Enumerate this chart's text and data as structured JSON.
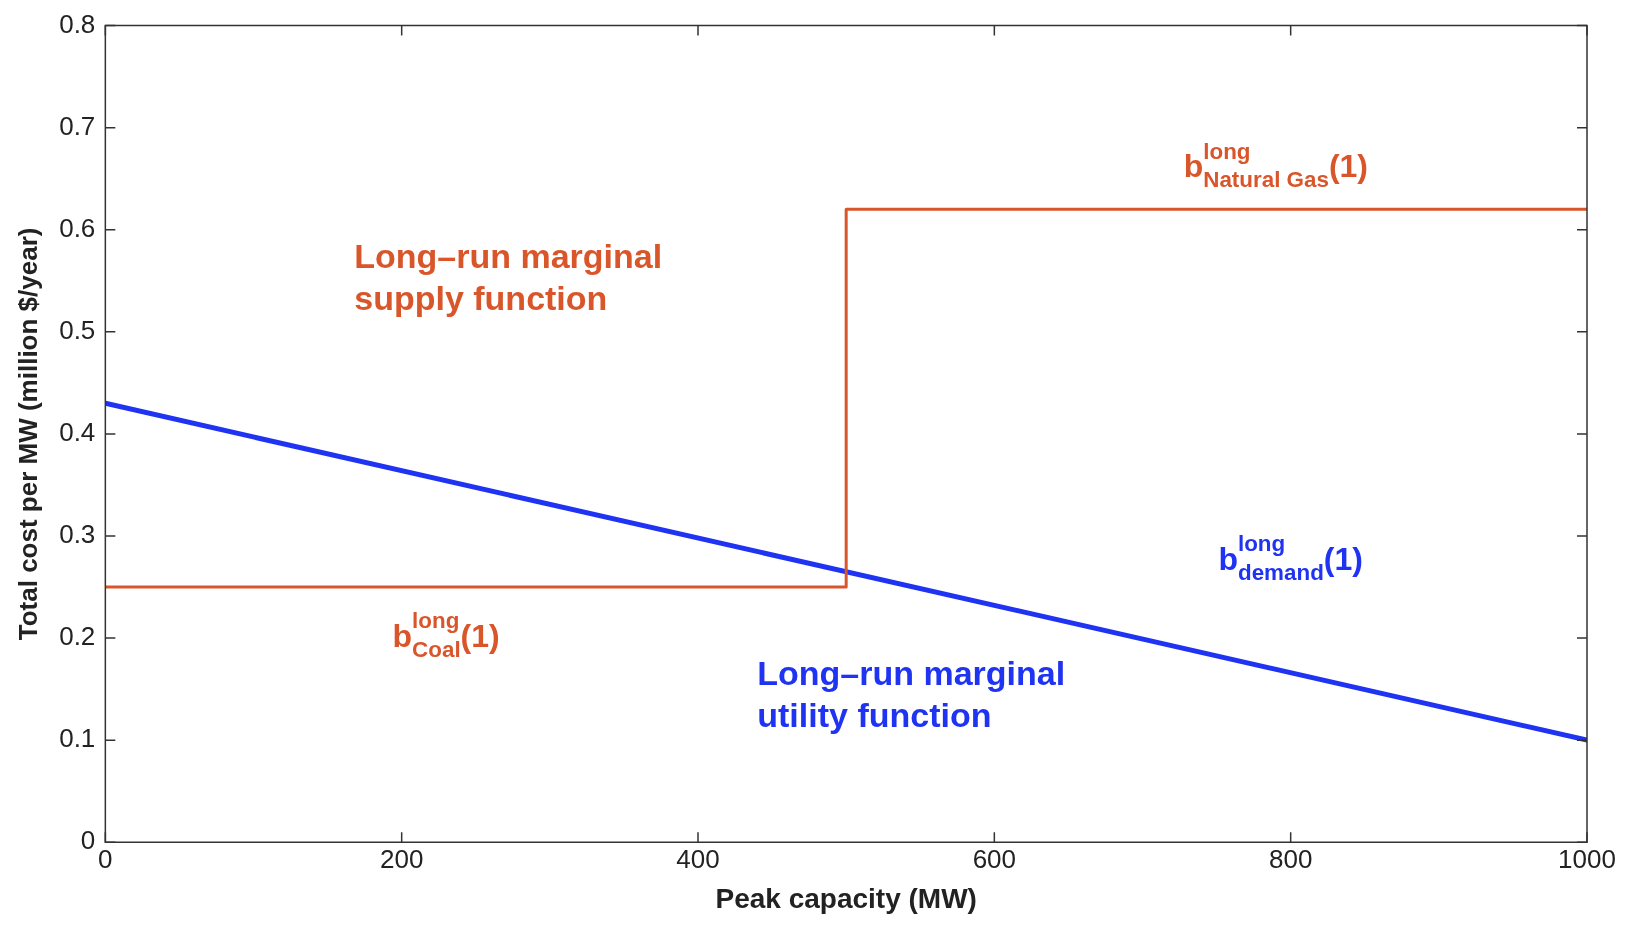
{
  "chart_data": {
    "type": "line",
    "xlabel": "Peak capacity (MW)",
    "ylabel": "Total cost per MW (million $/year)",
    "series": [
      {
        "name": "Long–run marginal supply function",
        "type": "step",
        "color": "#d9562b",
        "x": [
          0,
          500,
          1000
        ],
        "values": [
          0.25,
          0.62,
          0.62
        ]
      },
      {
        "name": "Long–run marginal utility function",
        "color": "#1f33f2",
        "x": [
          0,
          1000
        ],
        "values": [
          0.43,
          0.1
        ]
      }
    ],
    "annotations": [
      "b$^{long}$$_{Coal}$(1)",
      "b$^{long}$$_{Natural Gas}$(1)",
      "b$^{long}$$_{demand}$(1)"
    ],
    "xlim": [
      0,
      1000
    ],
    "xticks": [
      0,
      200,
      400,
      600,
      800,
      1000
    ],
    "ylim": [
      0,
      0.8
    ],
    "yticks": [
      0,
      0.1,
      0.2,
      0.3,
      0.4,
      0.5,
      0.6,
      0.7,
      0.8
    ],
    "grid": false,
    "legend": false,
    "marker": "none",
    "line_style": "solid"
  }
}
